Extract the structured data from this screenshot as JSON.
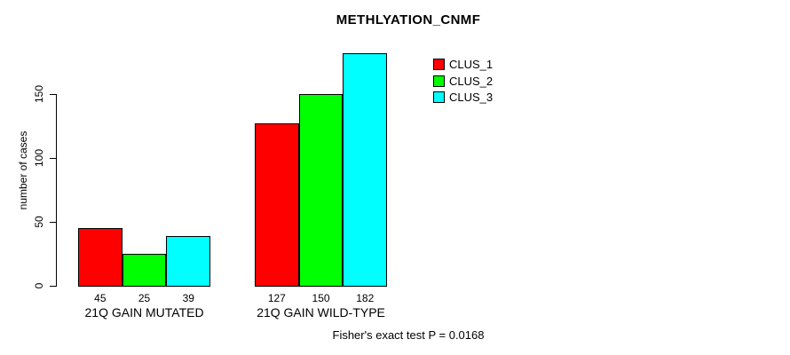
{
  "chart_data": {
    "type": "bar",
    "title": "METHLYATION_CNMF",
    "ylabel": "number of cases",
    "xlabel": "",
    "yticks": [
      0,
      50,
      100,
      150
    ],
    "ylim": [
      0,
      185
    ],
    "axis_tick_max": 150,
    "grid": false,
    "legend_position": "top-right",
    "categories": [
      "21Q GAIN MUTATED",
      "21Q GAIN WILD-TYPE"
    ],
    "series": [
      {
        "name": "CLUS_1",
        "color": "#FF0000",
        "values": [
          45,
          127
        ]
      },
      {
        "name": "CLUS_2",
        "color": "#00FF00",
        "values": [
          25,
          150
        ]
      },
      {
        "name": "CLUS_3",
        "color": "#00FFFF",
        "values": [
          39,
          182
        ]
      }
    ],
    "bar_value_labels": [
      [
        45,
        25,
        39
      ],
      [
        127,
        150,
        182
      ]
    ],
    "footnote": "Fisher's exact test P = 0.0168"
  }
}
